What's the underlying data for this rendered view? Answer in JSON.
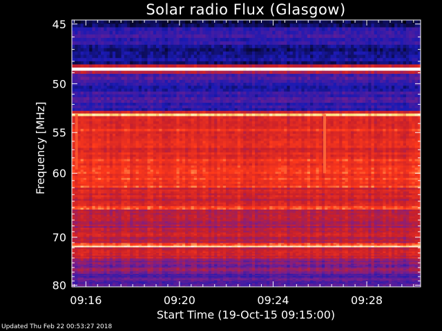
{
  "chart_data": {
    "type": "heatmap",
    "title": "Solar radio Flux (Glasgow)",
    "xlabel": "Start Time (19-Oct-15 09:15:00)",
    "ylabel": "Frequency [MHz]",
    "x_ticks": [
      "09:16",
      "09:20",
      "09:24",
      "09:28"
    ],
    "x_tick_minutes": [
      1,
      5,
      9,
      13
    ],
    "x_range_minutes": [
      0.4,
      15.3
    ],
    "y_ticks": [
      45,
      50,
      55,
      60,
      70,
      80
    ],
    "y_scale": "reciprocal",
    "y_range_mhz": [
      44.7,
      80.4
    ],
    "y_direction": "increasing-downward",
    "colormap": [
      "#000000",
      "#1a1ab4",
      "#7a1f8c",
      "#c8202a",
      "#ff3a1a",
      "#ffe080",
      "#ffffff"
    ],
    "bands": [
      {
        "from": 44.7,
        "to": 45.2,
        "level": 0.05
      },
      {
        "from": 45.2,
        "to": 46.5,
        "level": 0.18
      },
      {
        "from": 46.5,
        "to": 48.3,
        "level": 0.14
      },
      {
        "from": 48.3,
        "to": 48.5,
        "level": 0.55
      },
      {
        "from": 48.5,
        "to": 48.9,
        "level": 0.98
      },
      {
        "from": 48.9,
        "to": 49.2,
        "level": 0.45
      },
      {
        "from": 49.2,
        "to": 52.6,
        "level": 0.2
      },
      {
        "from": 52.6,
        "to": 52.9,
        "level": 0.5
      },
      {
        "from": 52.9,
        "to": 53.3,
        "level": 0.86
      },
      {
        "from": 53.3,
        "to": 58.0,
        "level": 0.58
      },
      {
        "from": 58.0,
        "to": 62.0,
        "level": 0.62
      },
      {
        "from": 62.0,
        "to": 64.8,
        "level": 0.52
      },
      {
        "from": 64.8,
        "to": 65.4,
        "level": 0.7
      },
      {
        "from": 65.4,
        "to": 68.5,
        "level": 0.44
      },
      {
        "from": 68.5,
        "to": 71.2,
        "level": 0.48
      },
      {
        "from": 71.2,
        "to": 71.6,
        "level": 0.66
      },
      {
        "from": 71.6,
        "to": 71.9,
        "level": 0.9
      },
      {
        "from": 71.9,
        "to": 74.0,
        "level": 0.52
      },
      {
        "from": 74.0,
        "to": 77.5,
        "level": 0.36
      },
      {
        "from": 77.5,
        "to": 80.4,
        "level": 0.26
      }
    ],
    "bursts": [
      {
        "t": 11.2,
        "from": 53.0,
        "to": 60.0,
        "level": 0.72
      },
      {
        "t": 0.6,
        "from": 53.0,
        "to": 59.5,
        "level": 0.7
      }
    ]
  },
  "footer_text": "Updated Thu Feb 22 00:53:27 2018"
}
